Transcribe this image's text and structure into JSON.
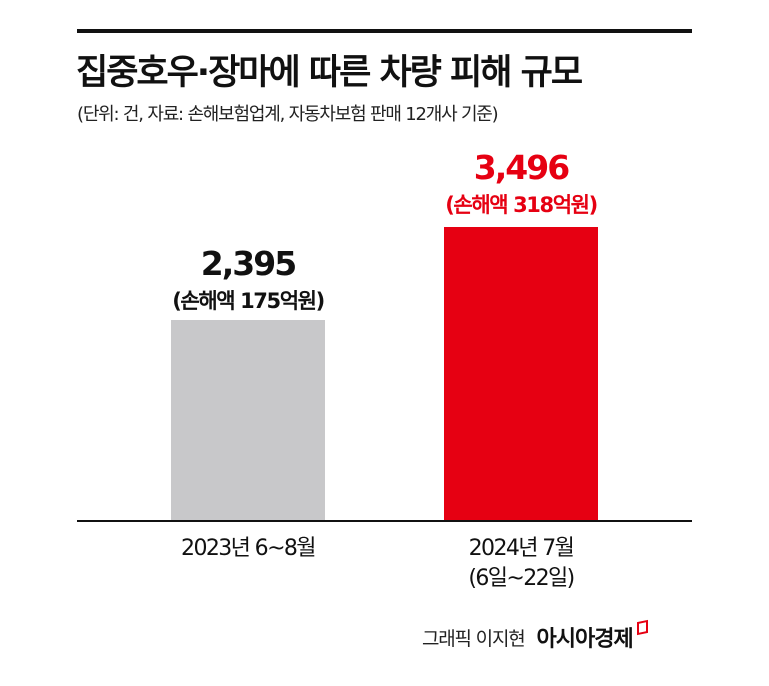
{
  "header": {
    "title": "집중호우·장마에 따른 차량 피해 규모",
    "subtitle": "(단위: 건, 자료: 손해보험업계, 자동차보험 판매 12개사 기준)"
  },
  "bars": [
    {
      "category": "2023년 6~8월",
      "category_line2": "",
      "value_label": "2,395",
      "loss_label": "(손해액 175억원)",
      "color": "#c8c8ca"
    },
    {
      "category": "2024년 7월",
      "category_line2": "(6일~22일)",
      "value_label": "3,496",
      "loss_label": "(손해액 318억원)",
      "color": "#e60012"
    }
  ],
  "footer": {
    "credit": "그래픽 이지현",
    "brand": "아시아경제"
  },
  "chart_data": {
    "type": "bar",
    "title": "집중호우·장마에 따른 차량 피해 규모",
    "subtitle": "(단위: 건, 자료: 손해보험업계, 자동차보험 판매 12개사 기준)",
    "categories": [
      "2023년 6~8월",
      "2024년 7월 (6일~22일)"
    ],
    "values": [
      2395,
      3496
    ],
    "annotations": [
      "(손해액 175억원)",
      "(손해액 318억원)"
    ],
    "loss_amount_eok_won": [
      175,
      318
    ],
    "xlabel": "",
    "ylabel": "건",
    "grid": false,
    "legend": "none",
    "colors": [
      "#c8c8ca",
      "#e60012"
    ]
  }
}
